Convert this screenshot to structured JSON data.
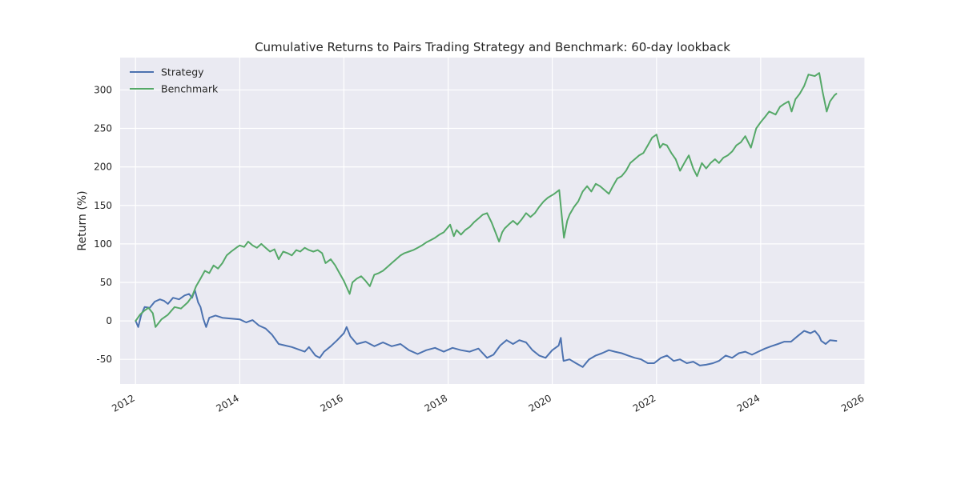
{
  "chart_data": {
    "type": "line",
    "title": "Cumulative Returns to Pairs Trading Strategy and Benchmark: 60-day lookback",
    "xlabel": "",
    "ylabel": "Return (%)",
    "xlim": [
      "2011-09-15",
      "2026-01-01"
    ],
    "ylim": [
      -82,
      342
    ],
    "x_ticks": [
      "2012",
      "2014",
      "2016",
      "2018",
      "2020",
      "2022",
      "2024",
      "2026"
    ],
    "y_ticks": [
      -50,
      0,
      50,
      100,
      150,
      200,
      250,
      300
    ],
    "grid": true,
    "legend_position": "top-left",
    "series": [
      {
        "name": "Strategy",
        "color": "#4c72b0",
        "points": [
          [
            "2012-01-02",
            0
          ],
          [
            "2012-01-20",
            -8
          ],
          [
            "2012-02-10",
            8
          ],
          [
            "2012-03-05",
            18
          ],
          [
            "2012-04-10",
            17
          ],
          [
            "2012-05-15",
            25
          ],
          [
            "2012-06-20",
            28
          ],
          [
            "2012-07-20",
            26
          ],
          [
            "2012-08-15",
            22
          ],
          [
            "2012-09-20",
            30
          ],
          [
            "2012-11-01",
            28
          ],
          [
            "2012-12-10",
            33
          ],
          [
            "2013-01-10",
            35
          ],
          [
            "2013-02-01",
            30
          ],
          [
            "2013-02-20",
            40
          ],
          [
            "2013-03-15",
            24
          ],
          [
            "2013-04-01",
            18
          ],
          [
            "2013-04-20",
            3
          ],
          [
            "2013-05-10",
            -8
          ],
          [
            "2013-06-01",
            4
          ],
          [
            "2013-07-15",
            7
          ],
          [
            "2013-09-01",
            4
          ],
          [
            "2013-11-01",
            3
          ],
          [
            "2014-01-01",
            2
          ],
          [
            "2014-02-15",
            -2
          ],
          [
            "2014-04-01",
            1
          ],
          [
            "2014-05-15",
            -6
          ],
          [
            "2014-07-01",
            -10
          ],
          [
            "2014-08-15",
            -18
          ],
          [
            "2014-10-01",
            -30
          ],
          [
            "2014-11-15",
            -32
          ],
          [
            "2015-01-01",
            -34
          ],
          [
            "2015-02-15",
            -37
          ],
          [
            "2015-04-01",
            -40
          ],
          [
            "2015-05-01",
            -34
          ],
          [
            "2015-06-15",
            -45
          ],
          [
            "2015-07-15",
            -48
          ],
          [
            "2015-08-15",
            -40
          ],
          [
            "2015-10-01",
            -33
          ],
          [
            "2015-11-15",
            -25
          ],
          [
            "2016-01-01",
            -16
          ],
          [
            "2016-01-20",
            -8
          ],
          [
            "2016-02-15",
            -20
          ],
          [
            "2016-04-01",
            -30
          ],
          [
            "2016-06-01",
            -27
          ],
          [
            "2016-08-01",
            -33
          ],
          [
            "2016-10-01",
            -28
          ],
          [
            "2016-12-01",
            -33
          ],
          [
            "2017-02-01",
            -30
          ],
          [
            "2017-04-01",
            -38
          ],
          [
            "2017-06-01",
            -43
          ],
          [
            "2017-08-01",
            -38
          ],
          [
            "2017-10-01",
            -35
          ],
          [
            "2017-12-01",
            -40
          ],
          [
            "2018-02-01",
            -35
          ],
          [
            "2018-04-01",
            -38
          ],
          [
            "2018-06-01",
            -40
          ],
          [
            "2018-08-01",
            -36
          ],
          [
            "2018-10-01",
            -48
          ],
          [
            "2018-11-15",
            -44
          ],
          [
            "2019-01-01",
            -32
          ],
          [
            "2019-02-15",
            -25
          ],
          [
            "2019-04-01",
            -30
          ],
          [
            "2019-05-15",
            -25
          ],
          [
            "2019-07-01",
            -28
          ],
          [
            "2019-08-15",
            -38
          ],
          [
            "2019-10-01",
            -45
          ],
          [
            "2019-11-15",
            -48
          ],
          [
            "2020-01-01",
            -38
          ],
          [
            "2020-02-15",
            -32
          ],
          [
            "2020-03-01",
            -22
          ],
          [
            "2020-03-10",
            -38
          ],
          [
            "2020-03-20",
            -52
          ],
          [
            "2020-05-01",
            -50
          ],
          [
            "2020-06-15",
            -55
          ],
          [
            "2020-08-01",
            -60
          ],
          [
            "2020-09-15",
            -50
          ],
          [
            "2020-11-01",
            -45
          ],
          [
            "2020-12-15",
            -42
          ],
          [
            "2021-02-01",
            -38
          ],
          [
            "2021-03-15",
            -40
          ],
          [
            "2021-05-01",
            -42
          ],
          [
            "2021-06-15",
            -45
          ],
          [
            "2021-08-01",
            -48
          ],
          [
            "2021-09-15",
            -50
          ],
          [
            "2021-11-01",
            -55
          ],
          [
            "2021-12-15",
            -55
          ],
          [
            "2022-02-01",
            -48
          ],
          [
            "2022-03-15",
            -45
          ],
          [
            "2022-05-01",
            -52
          ],
          [
            "2022-06-15",
            -50
          ],
          [
            "2022-08-01",
            -55
          ],
          [
            "2022-09-15",
            -53
          ],
          [
            "2022-11-01",
            -58
          ],
          [
            "2022-12-15",
            -57
          ],
          [
            "2023-02-01",
            -55
          ],
          [
            "2023-03-15",
            -52
          ],
          [
            "2023-05-01",
            -45
          ],
          [
            "2023-06-15",
            -48
          ],
          [
            "2023-08-01",
            -42
          ],
          [
            "2023-09-15",
            -40
          ],
          [
            "2023-11-01",
            -44
          ],
          [
            "2023-12-15",
            -40
          ],
          [
            "2024-02-01",
            -36
          ],
          [
            "2024-03-15",
            -33
          ],
          [
            "2024-05-01",
            -30
          ],
          [
            "2024-06-15",
            -27
          ],
          [
            "2024-08-01",
            -27
          ],
          [
            "2024-09-15",
            -20
          ],
          [
            "2024-11-01",
            -13
          ],
          [
            "2024-12-15",
            -16
          ],
          [
            "2025-01-15",
            -13
          ],
          [
            "2025-02-15",
            -20
          ],
          [
            "2025-03-01",
            -26
          ],
          [
            "2025-04-01",
            -30
          ],
          [
            "2025-05-01",
            -25
          ],
          [
            "2025-06-15",
            -26
          ]
        ]
      },
      {
        "name": "Benchmark",
        "color": "#55a868",
        "points": [
          [
            "2012-01-02",
            0
          ],
          [
            "2012-02-01",
            8
          ],
          [
            "2012-03-01",
            13
          ],
          [
            "2012-04-01",
            17
          ],
          [
            "2012-05-01",
            10
          ],
          [
            "2012-05-20",
            -8
          ],
          [
            "2012-06-10",
            -3
          ],
          [
            "2012-07-01",
            2
          ],
          [
            "2012-08-15",
            8
          ],
          [
            "2012-10-01",
            18
          ],
          [
            "2012-11-15",
            16
          ],
          [
            "2013-01-01",
            24
          ],
          [
            "2013-02-01",
            32
          ],
          [
            "2013-03-01",
            45
          ],
          [
            "2013-04-01",
            55
          ],
          [
            "2013-05-01",
            65
          ],
          [
            "2013-06-01",
            62
          ],
          [
            "2013-07-01",
            72
          ],
          [
            "2013-08-01",
            68
          ],
          [
            "2013-09-01",
            75
          ],
          [
            "2013-10-01",
            85
          ],
          [
            "2013-11-01",
            90
          ],
          [
            "2013-12-15",
            96
          ],
          [
            "2014-01-01",
            98
          ],
          [
            "2014-02-01",
            96
          ],
          [
            "2014-03-01",
            103
          ],
          [
            "2014-04-01",
            98
          ],
          [
            "2014-05-01",
            95
          ],
          [
            "2014-06-01",
            100
          ],
          [
            "2014-07-01",
            95
          ],
          [
            "2014-08-01",
            90
          ],
          [
            "2014-09-01",
            93
          ],
          [
            "2014-10-01",
            80
          ],
          [
            "2014-11-01",
            90
          ],
          [
            "2014-12-01",
            88
          ],
          [
            "2015-01-01",
            85
          ],
          [
            "2015-02-01",
            92
          ],
          [
            "2015-03-01",
            90
          ],
          [
            "2015-04-01",
            95
          ],
          [
            "2015-05-01",
            92
          ],
          [
            "2015-06-01",
            90
          ],
          [
            "2015-07-01",
            92
          ],
          [
            "2015-08-01",
            88
          ],
          [
            "2015-08-25",
            75
          ],
          [
            "2015-10-01",
            80
          ],
          [
            "2015-11-01",
            72
          ],
          [
            "2015-12-01",
            62
          ],
          [
            "2016-01-01",
            52
          ],
          [
            "2016-02-10",
            35
          ],
          [
            "2016-03-01",
            50
          ],
          [
            "2016-04-01",
            55
          ],
          [
            "2016-05-01",
            58
          ],
          [
            "2016-06-01",
            52
          ],
          [
            "2016-07-01",
            45
          ],
          [
            "2016-08-01",
            60
          ],
          [
            "2016-09-01",
            62
          ],
          [
            "2016-10-01",
            65
          ],
          [
            "2016-11-01",
            70
          ],
          [
            "2016-12-01",
            75
          ],
          [
            "2017-01-01",
            80
          ],
          [
            "2017-02-01",
            85
          ],
          [
            "2017-03-01",
            88
          ],
          [
            "2017-04-01",
            90
          ],
          [
            "2017-05-01",
            92
          ],
          [
            "2017-06-01",
            95
          ],
          [
            "2017-07-01",
            98
          ],
          [
            "2017-08-01",
            102
          ],
          [
            "2017-09-01",
            105
          ],
          [
            "2017-10-01",
            108
          ],
          [
            "2017-11-01",
            112
          ],
          [
            "2017-12-01",
            115
          ],
          [
            "2018-01-15",
            125
          ],
          [
            "2018-02-10",
            110
          ],
          [
            "2018-03-01",
            118
          ],
          [
            "2018-04-01",
            112
          ],
          [
            "2018-05-01",
            118
          ],
          [
            "2018-06-01",
            122
          ],
          [
            "2018-07-01",
            128
          ],
          [
            "2018-08-01",
            133
          ],
          [
            "2018-09-01",
            138
          ],
          [
            "2018-10-01",
            140
          ],
          [
            "2018-11-01",
            128
          ],
          [
            "2018-12-24",
            103
          ],
          [
            "2019-01-15",
            115
          ],
          [
            "2019-02-01",
            120
          ],
          [
            "2019-03-01",
            125
          ],
          [
            "2019-04-01",
            130
          ],
          [
            "2019-05-01",
            125
          ],
          [
            "2019-06-01",
            132
          ],
          [
            "2019-07-01",
            140
          ],
          [
            "2019-08-01",
            135
          ],
          [
            "2019-09-01",
            140
          ],
          [
            "2019-10-01",
            148
          ],
          [
            "2019-11-01",
            155
          ],
          [
            "2019-12-01",
            160
          ],
          [
            "2020-01-15",
            165
          ],
          [
            "2020-02-19",
            170
          ],
          [
            "2020-03-23",
            108
          ],
          [
            "2020-04-15",
            130
          ],
          [
            "2020-05-01",
            138
          ],
          [
            "2020-06-01",
            148
          ],
          [
            "2020-07-01",
            155
          ],
          [
            "2020-08-01",
            168
          ],
          [
            "2020-09-01",
            175
          ],
          [
            "2020-10-01",
            168
          ],
          [
            "2020-11-01",
            178
          ],
          [
            "2020-12-01",
            175
          ],
          [
            "2021-01-01",
            170
          ],
          [
            "2021-02-01",
            165
          ],
          [
            "2021-03-01",
            175
          ],
          [
            "2021-04-01",
            185
          ],
          [
            "2021-05-01",
            188
          ],
          [
            "2021-06-01",
            195
          ],
          [
            "2021-07-01",
            205
          ],
          [
            "2021-08-01",
            210
          ],
          [
            "2021-09-01",
            215
          ],
          [
            "2021-10-01",
            218
          ],
          [
            "2021-11-01",
            228
          ],
          [
            "2021-12-01",
            238
          ],
          [
            "2022-01-01",
            242
          ],
          [
            "2022-01-25",
            225
          ],
          [
            "2022-02-15",
            230
          ],
          [
            "2022-03-15",
            228
          ],
          [
            "2022-04-15",
            218
          ],
          [
            "2022-05-15",
            210
          ],
          [
            "2022-06-15",
            195
          ],
          [
            "2022-07-15",
            205
          ],
          [
            "2022-08-15",
            215
          ],
          [
            "2022-09-15",
            198
          ],
          [
            "2022-10-12",
            188
          ],
          [
            "2022-11-15",
            205
          ],
          [
            "2022-12-15",
            198
          ],
          [
            "2023-01-15",
            205
          ],
          [
            "2023-02-15",
            210
          ],
          [
            "2023-03-15",
            205
          ],
          [
            "2023-04-15",
            212
          ],
          [
            "2023-05-15",
            215
          ],
          [
            "2023-06-15",
            220
          ],
          [
            "2023-07-15",
            228
          ],
          [
            "2023-08-15",
            232
          ],
          [
            "2023-09-15",
            240
          ],
          [
            "2023-10-25",
            225
          ],
          [
            "2023-12-01",
            250
          ],
          [
            "2024-01-01",
            258
          ],
          [
            "2024-02-01",
            265
          ],
          [
            "2024-03-01",
            272
          ],
          [
            "2024-04-15",
            268
          ],
          [
            "2024-05-15",
            278
          ],
          [
            "2024-06-15",
            282
          ],
          [
            "2024-07-15",
            285
          ],
          [
            "2024-08-05",
            272
          ],
          [
            "2024-09-01",
            288
          ],
          [
            "2024-10-01",
            295
          ],
          [
            "2024-11-01",
            305
          ],
          [
            "2024-12-01",
            320
          ],
          [
            "2025-01-15",
            318
          ],
          [
            "2025-02-15",
            322
          ],
          [
            "2025-03-10",
            298
          ],
          [
            "2025-04-08",
            272
          ],
          [
            "2025-05-01",
            285
          ],
          [
            "2025-06-01",
            293
          ],
          [
            "2025-06-15",
            295
          ]
        ]
      }
    ]
  }
}
